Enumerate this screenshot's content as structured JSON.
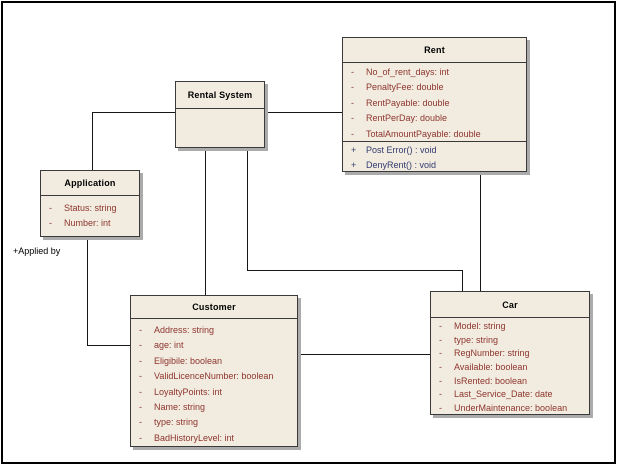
{
  "diagram": {
    "kind": "uml-class-diagram",
    "colors": {
      "box_fill": "#F1ECDF",
      "box_border": "#3A3A3A",
      "shadow": "#ABABAB",
      "attribute_text": "#8E342E",
      "method_text": "#333A70",
      "title_text": "#000000",
      "connector": "#161616",
      "frame": "#000000",
      "background": "#FFFFFF"
    },
    "classes": [
      {
        "id": "rental-system",
        "title": "Rental System",
        "attributes": [],
        "methods": []
      },
      {
        "id": "rent",
        "title": "Rent",
        "attributes": [
          {
            "vis": "-",
            "text": "No_of_rent_days:  int"
          },
          {
            "vis": "-",
            "text": "PenaltyFee:  double"
          },
          {
            "vis": "-",
            "text": "RentPayable:  double"
          },
          {
            "vis": "-",
            "text": "RentPerDay:  double"
          },
          {
            "vis": "-",
            "text": "TotalAmountPayable:  double"
          }
        ],
        "methods": [
          {
            "vis": "+",
            "text": "Post Error() : void"
          },
          {
            "vis": "+",
            "text": "DenyRent() : void"
          }
        ]
      },
      {
        "id": "application",
        "title": "Application",
        "attributes": [
          {
            "vis": "-",
            "text": "Status:  string"
          },
          {
            "vis": "-",
            "text": "Number:  int"
          }
        ],
        "methods": []
      },
      {
        "id": "customer",
        "title": "Customer",
        "attributes": [
          {
            "vis": "-",
            "text": "Address:  string"
          },
          {
            "vis": "-",
            "text": "age:  int"
          },
          {
            "vis": "-",
            "text": "Eligibile:  boolean"
          },
          {
            "vis": "-",
            "text": "ValidLicenceNumber:  boolean"
          },
          {
            "vis": "-",
            "text": "LoyaltyPoints:  int"
          },
          {
            "vis": "-",
            "text": "Name:  string"
          },
          {
            "vis": "-",
            "text": "type:  string"
          },
          {
            "vis": "-",
            "text": "BadHistoryLevel:  int"
          }
        ],
        "methods": []
      },
      {
        "id": "car",
        "title": "Car",
        "attributes": [
          {
            "vis": "-",
            "text": "Model:  string"
          },
          {
            "vis": "-",
            "text": "type:  string"
          },
          {
            "vis": "-",
            "text": "RegNumber:  string"
          },
          {
            "vis": "-",
            "text": "Available:  boolean"
          },
          {
            "vis": "-",
            "text": "IsRented:  boolean"
          },
          {
            "vis": "-",
            "text": "Last_Service_Date:  date"
          },
          {
            "vis": "-",
            "text": "UnderMaintenance:  boolean"
          }
        ],
        "methods": []
      }
    ],
    "relations": [
      {
        "from": "Application",
        "to": "Rental System",
        "label": ""
      },
      {
        "from": "Rental System",
        "to": "Rent",
        "label": ""
      },
      {
        "from": "Rental System",
        "to": "Customer",
        "label": ""
      },
      {
        "from": "Rental System",
        "to": "Car",
        "label": ""
      },
      {
        "from": "Application",
        "to": "Customer",
        "label": "+Applied by"
      },
      {
        "from": "Customer",
        "to": "Car",
        "label": ""
      },
      {
        "from": "Rent",
        "to": "Car",
        "label": ""
      }
    ]
  }
}
